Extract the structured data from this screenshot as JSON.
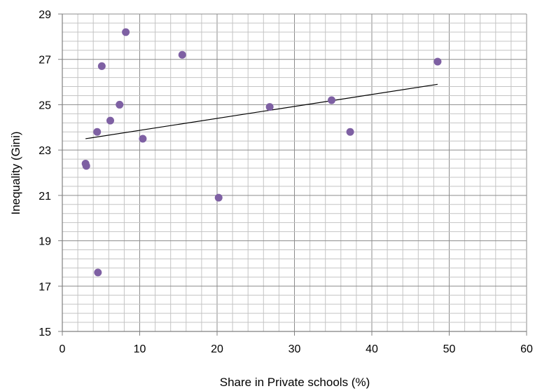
{
  "chart_data": {
    "type": "scatter",
    "xlabel": "Share in Private schools (%)",
    "ylabel": "Inequality (Gini)",
    "xlim": [
      0,
      60
    ],
    "ylim": [
      15,
      29
    ],
    "x_ticks": [
      "0",
      "10",
      "20",
      "30",
      "40",
      "50",
      "60"
    ],
    "y_ticks": [
      "15",
      "17",
      "19",
      "21",
      "23",
      "25",
      "27",
      "29"
    ],
    "grid": true,
    "legend": "none",
    "marker_color": "#7e60a3",
    "series": [
      {
        "points": [
          {
            "x": 3.0,
            "y": 22.4
          },
          {
            "x": 3.1,
            "y": 22.3
          },
          {
            "x": 4.5,
            "y": 23.8
          },
          {
            "x": 4.6,
            "y": 17.6
          },
          {
            "x": 5.1,
            "y": 26.7
          },
          {
            "x": 6.2,
            "y": 24.3
          },
          {
            "x": 7.4,
            "y": 25.0
          },
          {
            "x": 8.2,
            "y": 28.2
          },
          {
            "x": 10.4,
            "y": 23.5
          },
          {
            "x": 15.5,
            "y": 27.2
          },
          {
            "x": 20.2,
            "y": 20.9
          },
          {
            "x": 26.8,
            "y": 24.9
          },
          {
            "x": 34.8,
            "y": 25.2
          },
          {
            "x": 37.2,
            "y": 23.8
          },
          {
            "x": 48.5,
            "y": 26.9
          }
        ]
      }
    ],
    "trendline": {
      "type": "linear",
      "x_start": 3.0,
      "y_start": 23.5,
      "x_end": 48.5,
      "y_end": 25.9,
      "color": "#000000"
    }
  }
}
